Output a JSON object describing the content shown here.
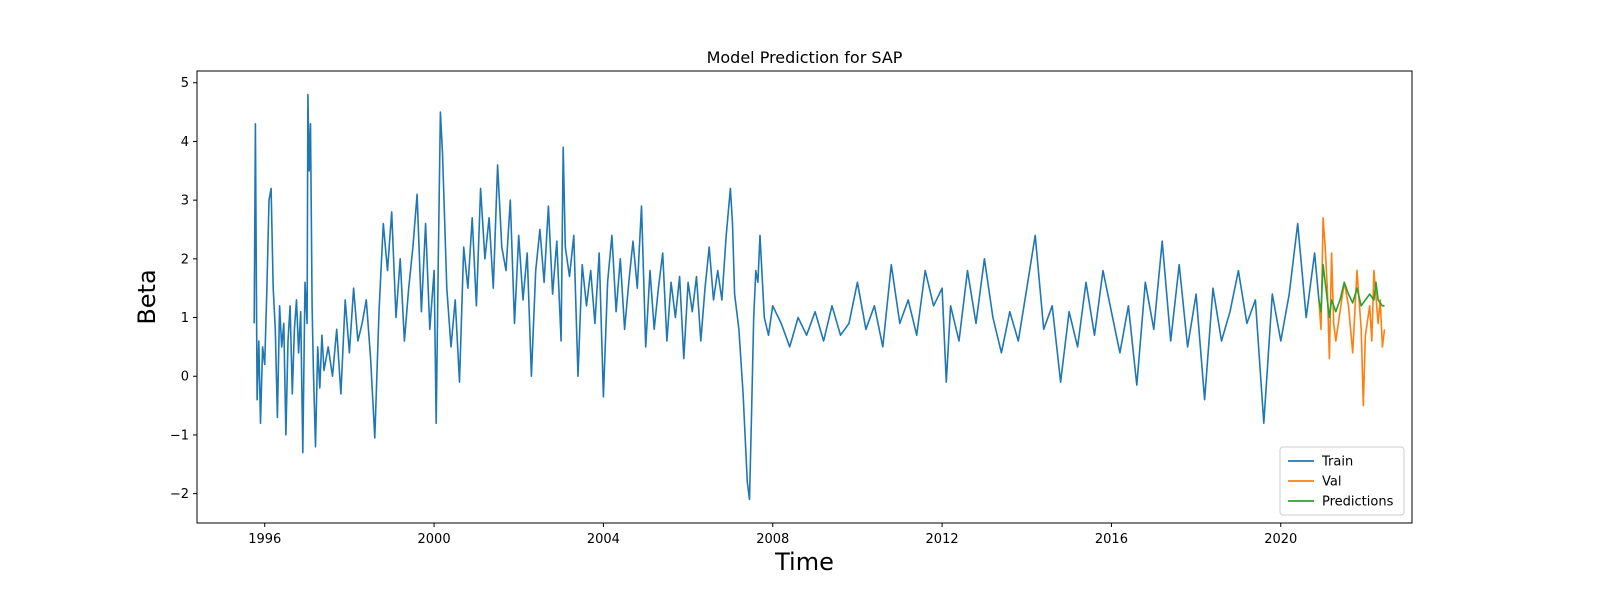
{
  "chart_data": {
    "type": "line",
    "title": "Model Prediction for SAP",
    "xlabel": "Time",
    "ylabel": "Beta",
    "xlim": [
      1994.4,
      2023.1
    ],
    "ylim": [
      -2.5,
      5.2
    ],
    "x_ticks": [
      1996,
      2000,
      2004,
      2008,
      2012,
      2016,
      2020
    ],
    "y_ticks": [
      {
        "value": -2,
        "label": "−2"
      },
      {
        "value": -1,
        "label": "−1"
      },
      {
        "value": 0,
        "label": "0"
      },
      {
        "value": 1,
        "label": "1"
      },
      {
        "value": 2,
        "label": "2"
      },
      {
        "value": 3,
        "label": "3"
      },
      {
        "value": 4,
        "label": "4"
      },
      {
        "value": 5,
        "label": "5"
      }
    ],
    "grid": false,
    "legend": {
      "placement": "lower-right"
    },
    "series": [
      {
        "name": "Train",
        "color": "#1f77b4",
        "points": [
          [
            1995.75,
            0.9
          ],
          [
            1995.78,
            4.3
          ],
          [
            1995.82,
            -0.4
          ],
          [
            1995.86,
            0.6
          ],
          [
            1995.9,
            -0.8
          ],
          [
            1995.95,
            0.5
          ],
          [
            1996.0,
            0.2
          ],
          [
            1996.05,
            1.5
          ],
          [
            1996.1,
            3.0
          ],
          [
            1996.15,
            3.2
          ],
          [
            1996.2,
            1.5
          ],
          [
            1996.25,
            0.8
          ],
          [
            1996.3,
            -0.7
          ],
          [
            1996.35,
            1.2
          ],
          [
            1996.4,
            0.5
          ],
          [
            1996.45,
            0.9
          ],
          [
            1996.5,
            -1.0
          ],
          [
            1996.55,
            0.6
          ],
          [
            1996.6,
            1.2
          ],
          [
            1996.65,
            -0.3
          ],
          [
            1996.7,
            0.8
          ],
          [
            1996.75,
            1.3
          ],
          [
            1996.8,
            0.4
          ],
          [
            1996.85,
            1.1
          ],
          [
            1996.9,
            -1.3
          ],
          [
            1996.95,
            1.6
          ],
          [
            1997.0,
            0.9
          ],
          [
            1997.02,
            4.8
          ],
          [
            1997.05,
            3.5
          ],
          [
            1997.08,
            4.3
          ],
          [
            1997.12,
            1.2
          ],
          [
            1997.15,
            0.1
          ],
          [
            1997.2,
            -1.2
          ],
          [
            1997.25,
            0.5
          ],
          [
            1997.3,
            -0.2
          ],
          [
            1997.35,
            0.7
          ],
          [
            1997.4,
            0.1
          ],
          [
            1997.5,
            0.5
          ],
          [
            1997.6,
            0.0
          ],
          [
            1997.7,
            0.8
          ],
          [
            1997.8,
            -0.3
          ],
          [
            1997.9,
            1.3
          ],
          [
            1998.0,
            0.4
          ],
          [
            1998.1,
            1.5
          ],
          [
            1998.2,
            0.6
          ],
          [
            1998.3,
            0.9
          ],
          [
            1998.4,
            1.3
          ],
          [
            1998.5,
            0.3
          ],
          [
            1998.6,
            -1.05
          ],
          [
            1998.7,
            1.1
          ],
          [
            1998.8,
            2.6
          ],
          [
            1998.9,
            1.8
          ],
          [
            1999.0,
            2.8
          ],
          [
            1999.1,
            1.0
          ],
          [
            1999.2,
            2.0
          ],
          [
            1999.3,
            0.6
          ],
          [
            1999.4,
            1.5
          ],
          [
            1999.5,
            2.2
          ],
          [
            1999.6,
            3.1
          ],
          [
            1999.7,
            1.1
          ],
          [
            1999.8,
            2.6
          ],
          [
            1999.9,
            0.8
          ],
          [
            2000.0,
            1.8
          ],
          [
            2000.05,
            -0.8
          ],
          [
            2000.1,
            2.0
          ],
          [
            2000.15,
            4.5
          ],
          [
            2000.2,
            3.8
          ],
          [
            2000.3,
            1.5
          ],
          [
            2000.4,
            0.5
          ],
          [
            2000.5,
            1.3
          ],
          [
            2000.6,
            -0.1
          ],
          [
            2000.7,
            2.2
          ],
          [
            2000.8,
            1.5
          ],
          [
            2000.9,
            2.7
          ],
          [
            2001.0,
            1.2
          ],
          [
            2001.1,
            3.2
          ],
          [
            2001.2,
            2.0
          ],
          [
            2001.3,
            2.7
          ],
          [
            2001.4,
            1.5
          ],
          [
            2001.5,
            3.6
          ],
          [
            2001.6,
            2.2
          ],
          [
            2001.7,
            1.8
          ],
          [
            2001.8,
            3.0
          ],
          [
            2001.9,
            0.9
          ],
          [
            2002.0,
            2.4
          ],
          [
            2002.1,
            1.3
          ],
          [
            2002.2,
            2.1
          ],
          [
            2002.3,
            0.0
          ],
          [
            2002.4,
            1.8
          ],
          [
            2002.5,
            2.5
          ],
          [
            2002.6,
            1.6
          ],
          [
            2002.7,
            2.9
          ],
          [
            2002.8,
            1.4
          ],
          [
            2002.9,
            2.3
          ],
          [
            2003.0,
            0.6
          ],
          [
            2003.05,
            3.9
          ],
          [
            2003.1,
            2.2
          ],
          [
            2003.2,
            1.7
          ],
          [
            2003.3,
            2.4
          ],
          [
            2003.4,
            0.0
          ],
          [
            2003.5,
            1.9
          ],
          [
            2003.6,
            1.2
          ],
          [
            2003.7,
            1.8
          ],
          [
            2003.8,
            0.9
          ],
          [
            2003.9,
            2.1
          ],
          [
            2004.0,
            -0.35
          ],
          [
            2004.1,
            1.6
          ],
          [
            2004.2,
            2.4
          ],
          [
            2004.3,
            1.1
          ],
          [
            2004.4,
            2.0
          ],
          [
            2004.5,
            0.8
          ],
          [
            2004.6,
            1.6
          ],
          [
            2004.7,
            2.3
          ],
          [
            2004.8,
            1.5
          ],
          [
            2004.9,
            2.9
          ],
          [
            2005.0,
            0.5
          ],
          [
            2005.1,
            1.8
          ],
          [
            2005.2,
            0.8
          ],
          [
            2005.3,
            1.5
          ],
          [
            2005.4,
            2.1
          ],
          [
            2005.5,
            0.6
          ],
          [
            2005.6,
            1.6
          ],
          [
            2005.7,
            1.0
          ],
          [
            2005.8,
            1.7
          ],
          [
            2005.9,
            0.3
          ],
          [
            2006.0,
            1.6
          ],
          [
            2006.1,
            1.1
          ],
          [
            2006.2,
            1.7
          ],
          [
            2006.3,
            0.6
          ],
          [
            2006.4,
            1.5
          ],
          [
            2006.5,
            2.2
          ],
          [
            2006.6,
            1.3
          ],
          [
            2006.7,
            1.8
          ],
          [
            2006.8,
            1.3
          ],
          [
            2006.9,
            2.4
          ],
          [
            2007.0,
            3.2
          ],
          [
            2007.05,
            2.6
          ],
          [
            2007.1,
            1.4
          ],
          [
            2007.2,
            0.8
          ],
          [
            2007.3,
            -0.3
          ],
          [
            2007.4,
            -1.8
          ],
          [
            2007.45,
            -2.1
          ],
          [
            2007.5,
            -0.6
          ],
          [
            2007.55,
            1.0
          ],
          [
            2007.6,
            1.8
          ],
          [
            2007.65,
            1.6
          ],
          [
            2007.7,
            2.4
          ],
          [
            2007.8,
            1.0
          ],
          [
            2007.9,
            0.7
          ],
          [
            2008.0,
            1.2
          ],
          [
            2008.2,
            0.9
          ],
          [
            2008.4,
            0.5
          ],
          [
            2008.6,
            1.0
          ],
          [
            2008.8,
            0.7
          ],
          [
            2009.0,
            1.1
          ],
          [
            2009.2,
            0.6
          ],
          [
            2009.4,
            1.2
          ],
          [
            2009.6,
            0.7
          ],
          [
            2009.8,
            0.9
          ],
          [
            2010.0,
            1.6
          ],
          [
            2010.2,
            0.8
          ],
          [
            2010.4,
            1.2
          ],
          [
            2010.6,
            0.5
          ],
          [
            2010.8,
            1.9
          ],
          [
            2011.0,
            0.9
          ],
          [
            2011.2,
            1.3
          ],
          [
            2011.4,
            0.7
          ],
          [
            2011.6,
            1.8
          ],
          [
            2011.8,
            1.2
          ],
          [
            2012.0,
            1.5
          ],
          [
            2012.1,
            -0.1
          ],
          [
            2012.2,
            1.2
          ],
          [
            2012.4,
            0.6
          ],
          [
            2012.6,
            1.8
          ],
          [
            2012.8,
            0.9
          ],
          [
            2013.0,
            2.0
          ],
          [
            2013.2,
            1.0
          ],
          [
            2013.4,
            0.4
          ],
          [
            2013.6,
            1.1
          ],
          [
            2013.8,
            0.6
          ],
          [
            2014.0,
            1.5
          ],
          [
            2014.2,
            2.4
          ],
          [
            2014.4,
            0.8
          ],
          [
            2014.6,
            1.2
          ],
          [
            2014.8,
            -0.1
          ],
          [
            2015.0,
            1.1
          ],
          [
            2015.2,
            0.5
          ],
          [
            2015.4,
            1.6
          ],
          [
            2015.6,
            0.7
          ],
          [
            2015.8,
            1.8
          ],
          [
            2016.0,
            1.1
          ],
          [
            2016.2,
            0.4
          ],
          [
            2016.4,
            1.2
          ],
          [
            2016.6,
            -0.15
          ],
          [
            2016.8,
            1.6
          ],
          [
            2017.0,
            0.8
          ],
          [
            2017.2,
            2.3
          ],
          [
            2017.4,
            0.6
          ],
          [
            2017.6,
            1.9
          ],
          [
            2017.8,
            0.5
          ],
          [
            2018.0,
            1.4
          ],
          [
            2018.2,
            -0.4
          ],
          [
            2018.4,
            1.5
          ],
          [
            2018.6,
            0.6
          ],
          [
            2018.8,
            1.1
          ],
          [
            2019.0,
            1.8
          ],
          [
            2019.2,
            0.9
          ],
          [
            2019.4,
            1.3
          ],
          [
            2019.6,
            -0.8
          ],
          [
            2019.8,
            1.4
          ],
          [
            2020.0,
            0.6
          ],
          [
            2020.2,
            1.4
          ],
          [
            2020.4,
            2.6
          ],
          [
            2020.6,
            1.0
          ],
          [
            2020.8,
            2.1
          ],
          [
            2020.9,
            1.3
          ]
        ]
      },
      {
        "name": "Val",
        "color": "#ff7f0e",
        "points": [
          [
            2020.9,
            1.3
          ],
          [
            2020.95,
            0.8
          ],
          [
            2021.0,
            2.7
          ],
          [
            2021.05,
            2.2
          ],
          [
            2021.1,
            1.5
          ],
          [
            2021.15,
            0.3
          ],
          [
            2021.2,
            2.1
          ],
          [
            2021.25,
            0.9
          ],
          [
            2021.3,
            0.6
          ],
          [
            2021.4,
            1.1
          ],
          [
            2021.5,
            1.6
          ],
          [
            2021.6,
            1.2
          ],
          [
            2021.7,
            0.4
          ],
          [
            2021.8,
            1.8
          ],
          [
            2021.9,
            0.8
          ],
          [
            2021.95,
            -0.5
          ],
          [
            2022.0,
            0.7
          ],
          [
            2022.1,
            1.2
          ],
          [
            2022.15,
            0.6
          ],
          [
            2022.2,
            1.8
          ],
          [
            2022.3,
            0.9
          ],
          [
            2022.35,
            1.3
          ],
          [
            2022.4,
            0.5
          ],
          [
            2022.45,
            0.8
          ]
        ]
      },
      {
        "name": "Predictions",
        "color": "#2ca02c",
        "points": [
          [
            2020.9,
            1.3
          ],
          [
            2020.95,
            1.1
          ],
          [
            2021.0,
            1.9
          ],
          [
            2021.05,
            1.6
          ],
          [
            2021.1,
            1.3
          ],
          [
            2021.15,
            1.0
          ],
          [
            2021.2,
            1.3
          ],
          [
            2021.3,
            1.1
          ],
          [
            2021.4,
            1.3
          ],
          [
            2021.5,
            1.6
          ],
          [
            2021.6,
            1.4
          ],
          [
            2021.7,
            1.25
          ],
          [
            2021.8,
            1.5
          ],
          [
            2021.9,
            1.2
          ],
          [
            2022.0,
            1.3
          ],
          [
            2022.1,
            1.4
          ],
          [
            2022.2,
            1.3
          ],
          [
            2022.25,
            1.6
          ],
          [
            2022.3,
            1.3
          ],
          [
            2022.35,
            1.25
          ],
          [
            2022.4,
            1.2
          ],
          [
            2022.45,
            1.2
          ]
        ]
      }
    ]
  }
}
